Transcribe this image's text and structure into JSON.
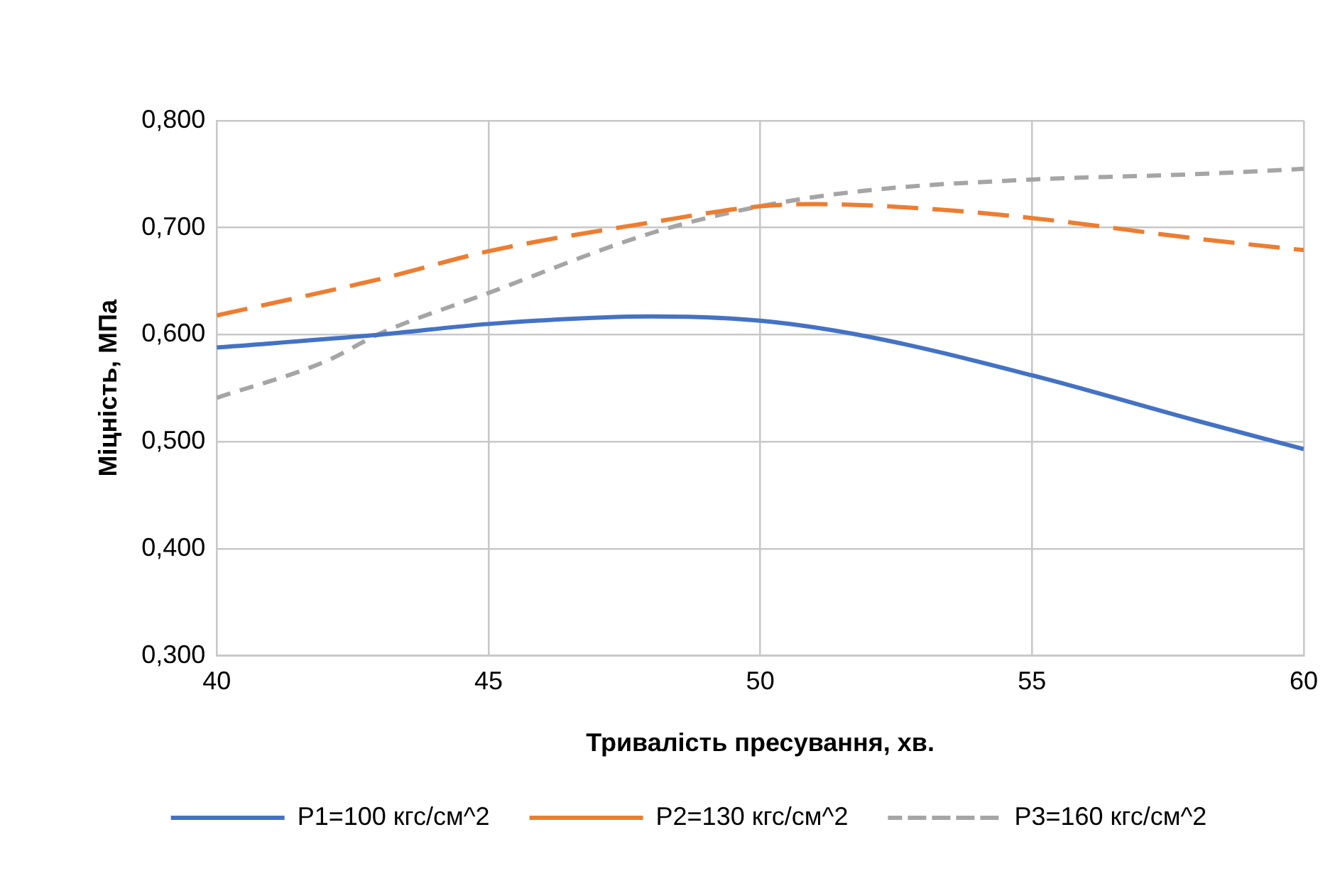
{
  "chart_data": {
    "type": "line",
    "xlabel": "Тривалість пресування, хв.",
    "ylabel": "Міцність, МПа",
    "xlim": [
      40,
      60
    ],
    "xticks": [
      40,
      45,
      50,
      55,
      60
    ],
    "ylim": [
      0.3,
      0.8
    ],
    "yticks": [
      {
        "value": 0.3,
        "label": "0,300"
      },
      {
        "value": 0.4,
        "label": "0,400"
      },
      {
        "value": 0.5,
        "label": "0,500"
      },
      {
        "value": 0.6,
        "label": "0,600"
      },
      {
        "value": 0.7,
        "label": "0,700"
      },
      {
        "value": 0.8,
        "label": "0,800"
      }
    ],
    "grid": true,
    "legend": "bottom",
    "marker": "none",
    "series": [
      {
        "name": "P1=100 кгс/см^2",
        "color": "#4472c4",
        "line_style": "solid",
        "x": [
          40,
          43,
          45,
          48,
          50,
          52,
          55,
          58,
          60
        ],
        "values": [
          0.588,
          0.6,
          0.61,
          0.617,
          0.613,
          0.598,
          0.562,
          0.52,
          0.493
        ]
      },
      {
        "name": "P2=130 кгс/см^2",
        "color": "#ed7d31",
        "line_style": "dashed",
        "x": [
          40,
          43,
          45,
          48,
          50,
          51,
          53,
          55,
          58,
          60
        ],
        "values": [
          0.618,
          0.652,
          0.678,
          0.705,
          0.72,
          0.722,
          0.718,
          0.709,
          0.69,
          0.679
        ]
      },
      {
        "name": "P3=160 кгс/см^2",
        "color": "#a5a5a5",
        "line_style": "dotted",
        "x": [
          40,
          42,
          43,
          45,
          48,
          50,
          52,
          55,
          58,
          60
        ],
        "values": [
          0.541,
          0.575,
          0.601,
          0.639,
          0.695,
          0.72,
          0.735,
          0.745,
          0.75,
          0.755
        ]
      }
    ]
  }
}
